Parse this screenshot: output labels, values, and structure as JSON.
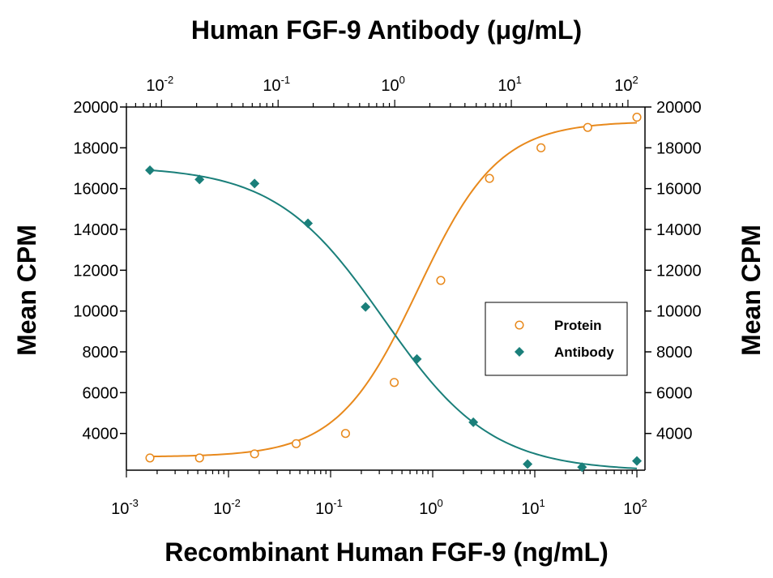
{
  "chart_data": {
    "type": "scatter",
    "title": "Human FGF-9 Antibody (μg/mL)",
    "xlabel": "Recombinant Human FGF-9 (ng/mL)",
    "ylabel": "Mean CPM",
    "ylabel_right": "Mean CPM",
    "x_scale": "log",
    "xlim": [
      0.001,
      120
    ],
    "ylim": [
      2200,
      20000
    ],
    "y_ticks": [
      "4000",
      "6000",
      "8000",
      "10000",
      "12000",
      "14000",
      "16000",
      "18000",
      "20000"
    ],
    "x_ticks_bottom": [
      {
        "base": "10",
        "exp": "-3"
      },
      {
        "base": "10",
        "exp": "-2"
      },
      {
        "base": "10",
        "exp": "-1"
      },
      {
        "base": "10",
        "exp": "0"
      },
      {
        "base": "10",
        "exp": "1"
      },
      {
        "base": "10",
        "exp": "2"
      }
    ],
    "x_ticks_top": [
      {
        "base": "10",
        "exp": "-2"
      },
      {
        "base": "10",
        "exp": "-1"
      },
      {
        "base": "10",
        "exp": "0"
      },
      {
        "base": "10",
        "exp": "1"
      },
      {
        "base": "10",
        "exp": "2"
      }
    ],
    "top_xlim": [
      0.005,
      140
    ],
    "legend_position": "right",
    "series": [
      {
        "name": "Protein",
        "marker": "open-circle",
        "color": "#e8891c",
        "x": [
          0.0017,
          0.0052,
          0.018,
          0.046,
          0.14,
          0.42,
          1.2,
          3.6,
          11.5,
          33,
          100
        ],
        "y": [
          2800,
          2800,
          3000,
          3500,
          4000,
          6500,
          11500,
          16500,
          18000,
          19000,
          19500
        ],
        "fit": {
          "bottom": 2850,
          "top": 19300,
          "ec50": 0.72,
          "hill": 1.1
        }
      },
      {
        "name": "Antibody",
        "marker": "filled-diamond",
        "color": "#1a7f7a",
        "x": [
          0.0017,
          0.0052,
          0.018,
          0.06,
          0.22,
          0.7,
          2.5,
          8.5,
          29,
          100
        ],
        "y": [
          16900,
          16450,
          16250,
          14300,
          10200,
          7650,
          4550,
          2500,
          2350,
          2650
        ],
        "fit": {
          "bottom": 2150,
          "top": 17100,
          "ec50": 0.33,
          "hill": 0.82
        }
      }
    ]
  }
}
